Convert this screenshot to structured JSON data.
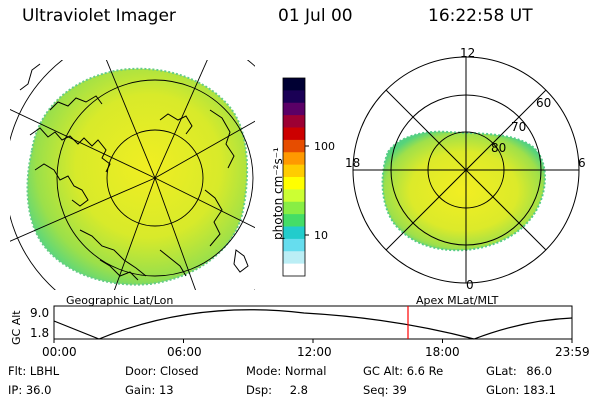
{
  "header": {
    "title": "Ultraviolet Imager",
    "date": "01 Jul 00",
    "time": "16:22:58 UT"
  },
  "colorbar": {
    "unit_label": "photon cm⁻²s⁻¹",
    "ticks": [
      "100",
      "10"
    ],
    "colors": [
      "#000033",
      "#1a0055",
      "#5a0066",
      "#9c0033",
      "#cc0000",
      "#e64d00",
      "#ff9900",
      "#ffcc00",
      "#ffff00",
      "#ccff33",
      "#88ee44",
      "#44dd66",
      "#22cccc",
      "#66ddee",
      "#bbeef5",
      "#ffffff"
    ]
  },
  "left_panel": {
    "label": "Geographic Lat/Lon"
  },
  "right_panel": {
    "label": "Apex MLat/MLT",
    "mlt_labels": {
      "top": "12",
      "right": "6",
      "bottom": "0",
      "left": "18"
    },
    "lat_labels": [
      "60",
      "70",
      "80"
    ]
  },
  "altitude_strip": {
    "y_label": "GC Alt",
    "y_ticks": [
      "9.0",
      "1.8"
    ],
    "x_ticks": [
      "00:00",
      "06:00",
      "12:00",
      "18:00",
      "23:59"
    ],
    "marker_time": "16:22:58"
  },
  "info": {
    "flt_label": "Flt:",
    "flt_value": "LBHL",
    "ip_label": "IP:",
    "ip_value": "36.0",
    "door_label": "Door:",
    "door_value": "Closed",
    "gain_label": "Gain:",
    "gain_value": "13",
    "mode_label": "Mode:",
    "mode_value": "Normal",
    "dsp_label": "Dsp:",
    "dsp_value": "2.8",
    "gcalt_label": "GC Alt:",
    "gcalt_value": "6.6 Re",
    "seq_label": "Seq:",
    "seq_value": "39",
    "glat_label": "GLat:",
    "glat_value": "86.0",
    "glon_label": "GLon:",
    "glon_value": "183.1"
  }
}
